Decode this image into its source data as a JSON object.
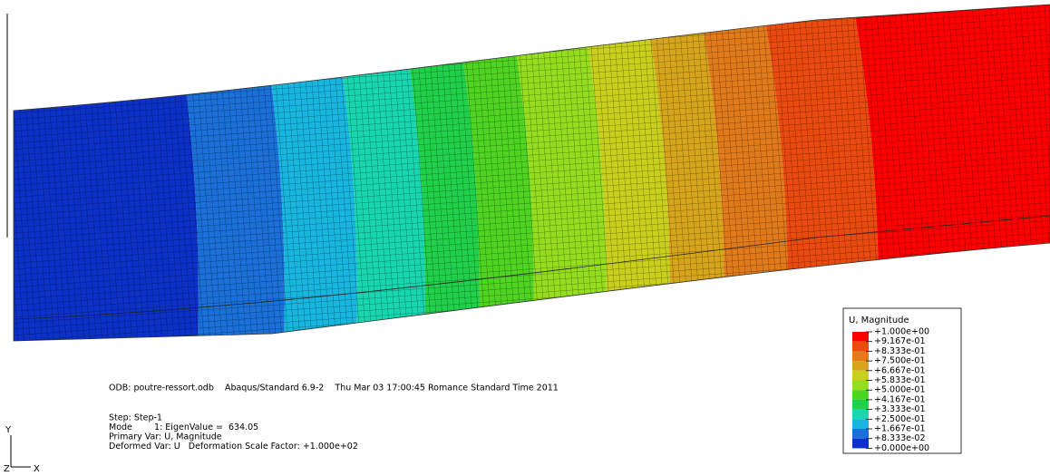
{
  "viewport": {
    "info": {
      "odb_line": "ODB: poutre-ressort.odb    Abaqus/Standard 6.9-2    Thu Mar 03 17:00:45 Romance Standard Time 2011",
      "lines": [
        "Step: Step-1",
        "Mode        1: EigenValue =  634.05",
        "Primary Var: U, Magnitude",
        "Deformed Var: U   Deformation Scale Factor: +1.000e+02"
      ]
    },
    "triad": {
      "y": "Y",
      "z": "Z",
      "x": "X"
    },
    "legend": {
      "title": "U, Magnitude",
      "labels": [
        "+1.000e+00",
        "+9.167e-01",
        "+8.333e-01",
        "+7.500e-01",
        "+6.667e-01",
        "+5.833e-01",
        "+5.000e-01",
        "+4.167e-01",
        "+3.333e-01",
        "+2.500e-01",
        "+1.667e-01",
        "+8.333e-02",
        "+0.000e+00"
      ],
      "colors": [
        "#ff0000",
        "#ea4a0e",
        "#e07a1a",
        "#d6a51c",
        "#c8cf1c",
        "#95dd1f",
        "#4ed421",
        "#20d04a",
        "#18d6b0",
        "#17b6df",
        "#1a6fd8",
        "#0b31c8"
      ]
    }
  }
}
